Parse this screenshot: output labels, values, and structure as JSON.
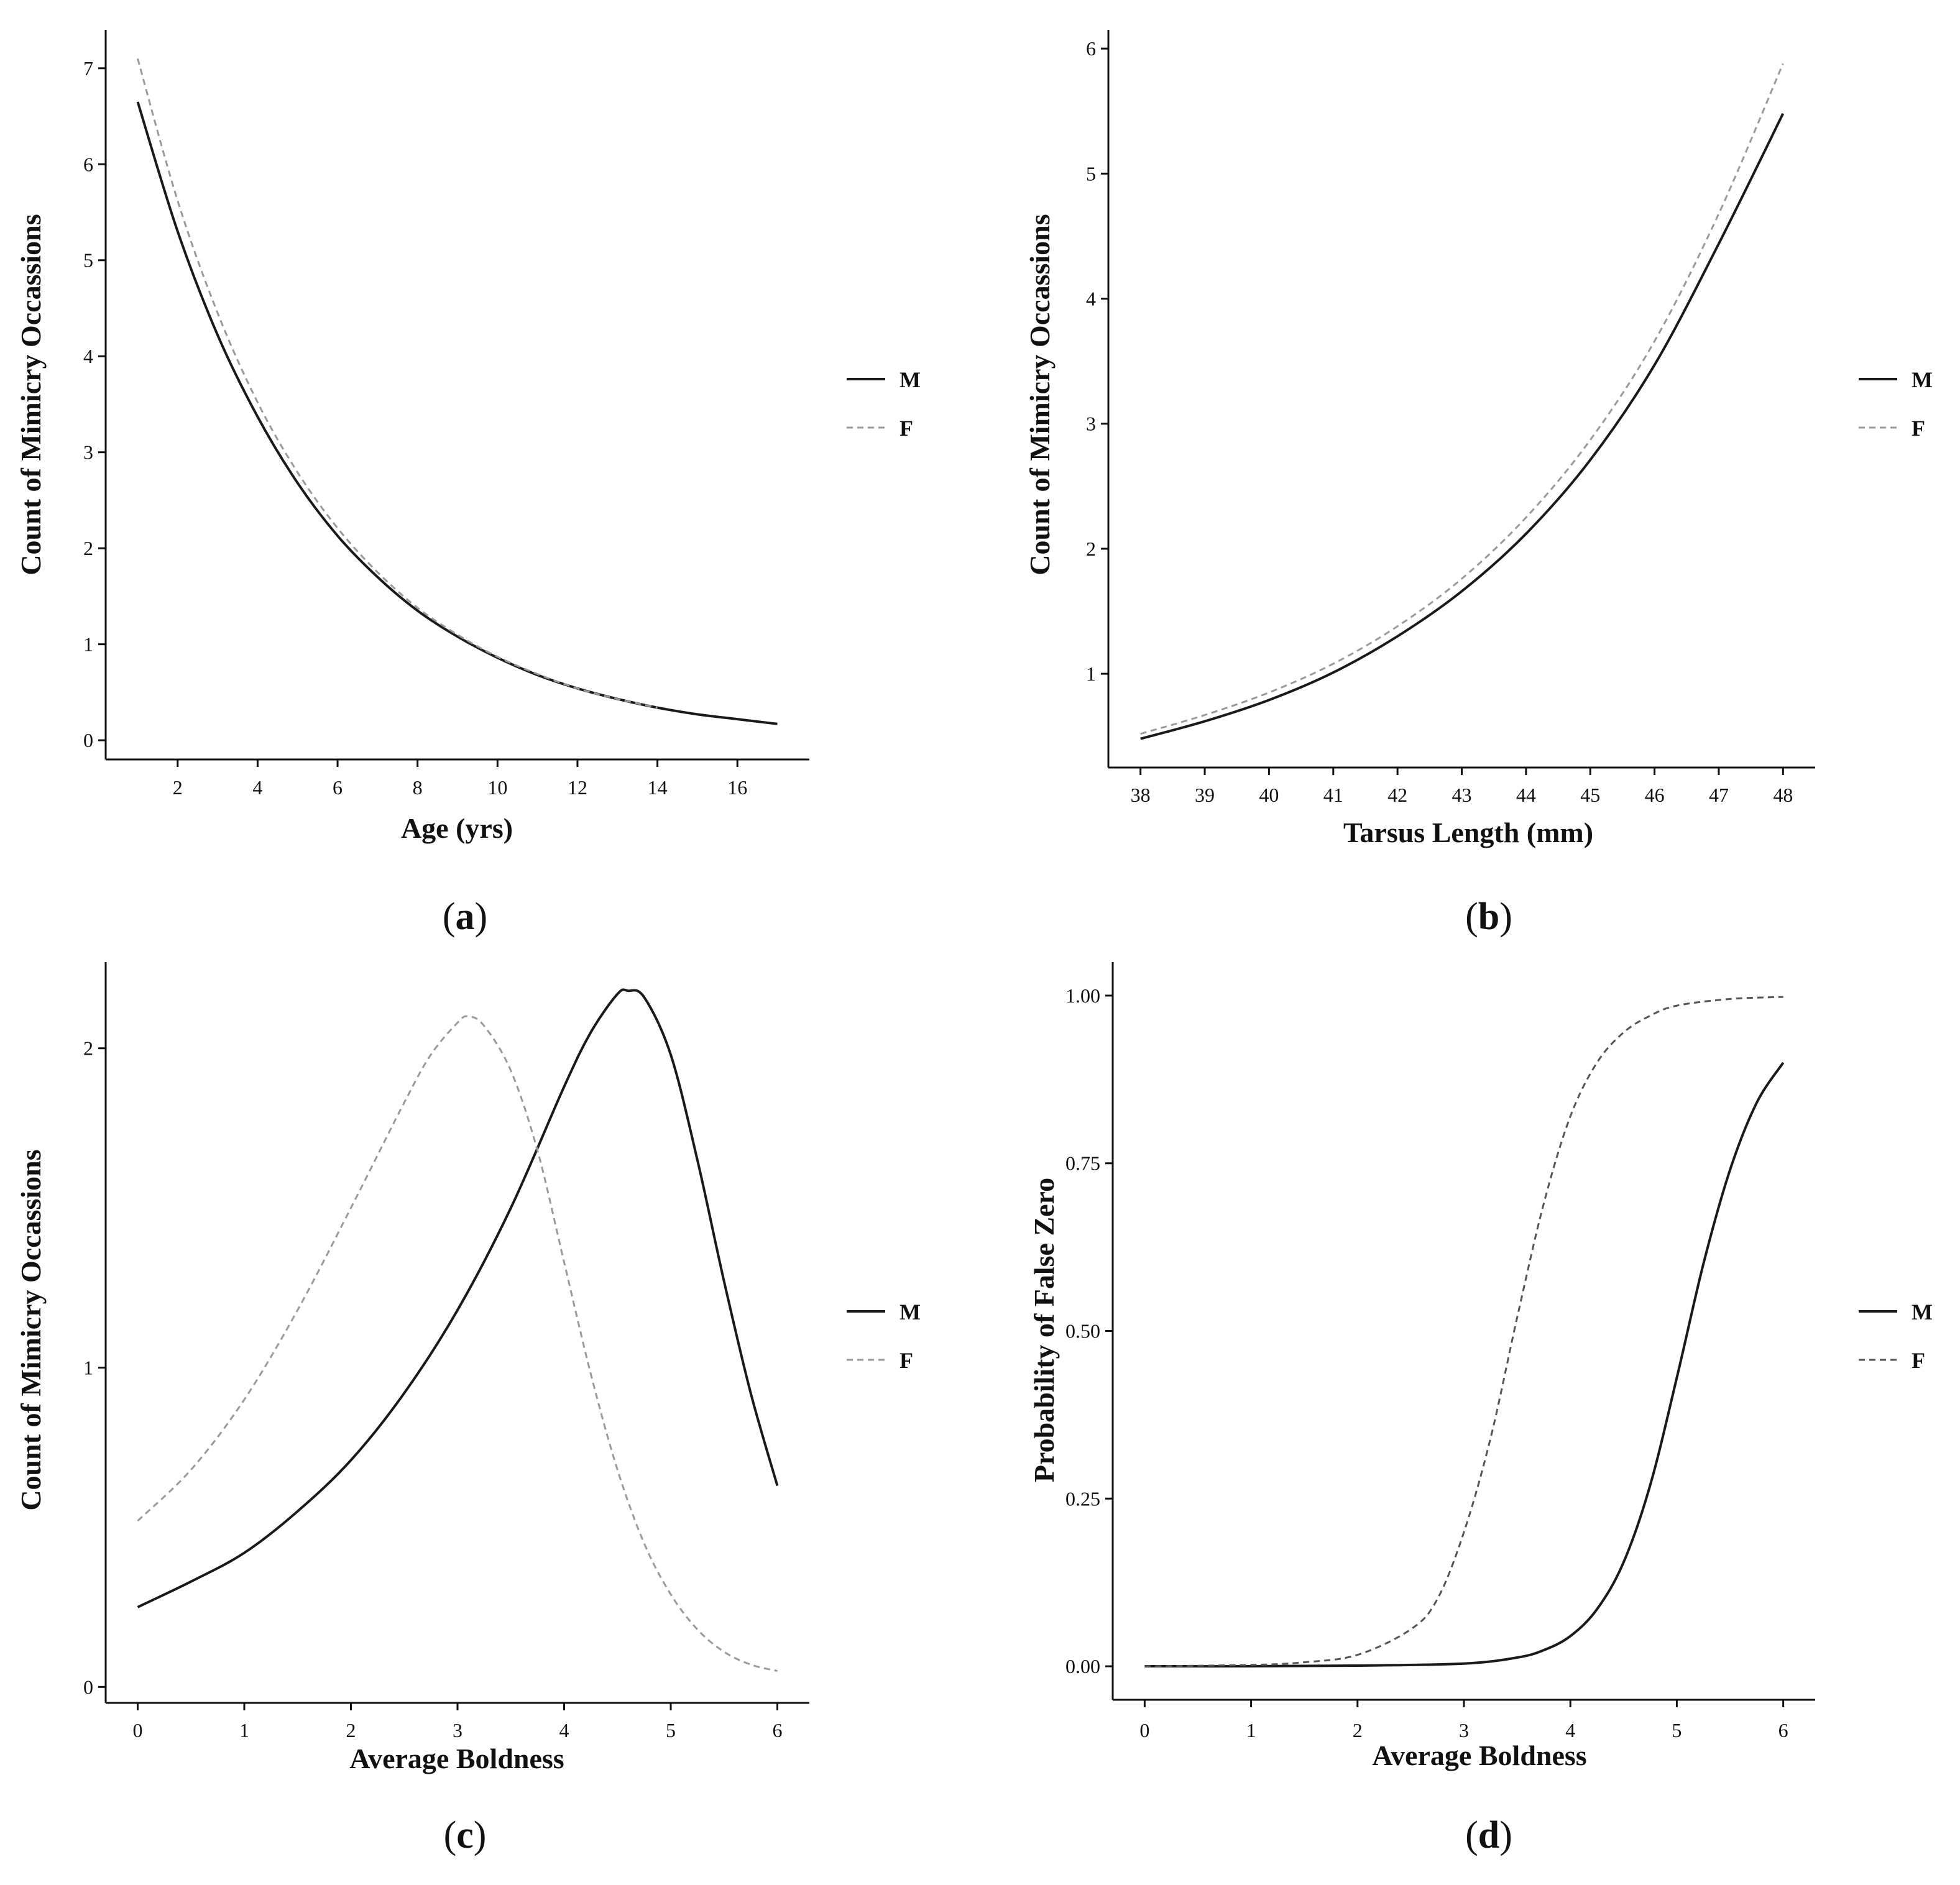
{
  "figure": {
    "panels": [
      "(a)",
      "(b)",
      "(c)",
      "(d)"
    ]
  },
  "colors": {
    "male": "#1a1a1a",
    "female": "#9a9a9a",
    "female_dark": "#555555",
    "axis": "#111111"
  },
  "chart_data": [
    {
      "id": "a",
      "caption_letter": "a",
      "type": "line",
      "title": "",
      "xlabel": "Age (yrs)",
      "ylabel": "Count of Mimicry Occassions",
      "xlim": [
        0.2,
        17.8
      ],
      "ylim": [
        -0.2,
        7.4
      ],
      "xticks": [
        2,
        4,
        6,
        8,
        10,
        12,
        14,
        16
      ],
      "yticks": [
        0,
        1,
        2,
        3,
        4,
        5,
        6,
        7
      ],
      "legend": {
        "position": "right",
        "entries": [
          "M",
          "F"
        ]
      },
      "series": [
        {
          "name": "M",
          "style": "solid",
          "x": [
            1,
            2,
            3,
            4,
            5,
            6,
            7,
            8,
            9,
            10,
            11,
            12,
            13,
            14,
            15,
            16,
            17
          ],
          "y": [
            6.65,
            5.3,
            4.22,
            3.37,
            2.68,
            2.13,
            1.7,
            1.35,
            1.08,
            0.86,
            0.68,
            0.54,
            0.43,
            0.34,
            0.27,
            0.22,
            0.17
          ]
        },
        {
          "name": "F",
          "style": "dashed",
          "x": [
            1,
            2,
            3,
            4,
            5,
            6,
            7,
            8,
            9,
            10,
            11,
            12,
            13,
            14
          ],
          "y": [
            7.1,
            5.62,
            4.45,
            3.52,
            2.79,
            2.21,
            1.75,
            1.38,
            1.1,
            0.87,
            0.69,
            0.54,
            0.43,
            0.34
          ]
        }
      ]
    },
    {
      "id": "b",
      "caption_letter": "b",
      "type": "line",
      "title": "",
      "xlabel": "Tarsus Length (mm)",
      "ylabel": "Count of Mimicry Occassions",
      "xlim": [
        37.5,
        48.5
      ],
      "ylim": [
        0.25,
        6.15
      ],
      "xticks": [
        38,
        39,
        40,
        41,
        42,
        43,
        44,
        45,
        46,
        47,
        48
      ],
      "yticks": [
        1,
        2,
        3,
        4,
        5,
        6
      ],
      "legend": {
        "position": "right",
        "entries": [
          "M",
          "F"
        ]
      },
      "series": [
        {
          "name": "M",
          "style": "solid",
          "x": [
            38,
            39,
            40,
            41,
            42,
            43,
            44,
            45,
            46,
            47,
            48
          ],
          "y": [
            0.48,
            0.62,
            0.79,
            1.01,
            1.3,
            1.66,
            2.12,
            2.71,
            3.47,
            4.44,
            5.48
          ]
        },
        {
          "name": "F",
          "style": "dashed",
          "x": [
            38,
            39,
            40,
            41,
            42,
            43,
            44,
            45,
            46,
            47,
            48
          ],
          "y": [
            0.52,
            0.67,
            0.85,
            1.08,
            1.38,
            1.76,
            2.25,
            2.87,
            3.66,
            4.68,
            5.88
          ]
        }
      ]
    },
    {
      "id": "c",
      "caption_letter": "c",
      "type": "line",
      "title": "",
      "xlabel": "Average Boldness",
      "ylabel": "Count of Mimicry Occassions",
      "xlim": [
        -0.3,
        6.3
      ],
      "ylim": [
        -0.05,
        2.27
      ],
      "xticks": [
        0,
        1,
        2,
        3,
        4,
        5,
        6
      ],
      "yticks": [
        0,
        1,
        2
      ],
      "legend": {
        "position": "right",
        "entries": [
          "M",
          "F"
        ]
      },
      "series": [
        {
          "name": "M",
          "style": "solid",
          "x": [
            0,
            0.5,
            1,
            1.5,
            2,
            2.5,
            3,
            3.5,
            4,
            4.25,
            4.5,
            4.6,
            4.75,
            5,
            5.25,
            5.5,
            5.75,
            6
          ],
          "y": [
            0.25,
            0.33,
            0.42,
            0.55,
            0.71,
            0.92,
            1.18,
            1.5,
            1.88,
            2.05,
            2.17,
            2.18,
            2.16,
            1.98,
            1.65,
            1.27,
            0.92,
            0.63
          ]
        },
        {
          "name": "F",
          "style": "dashed",
          "x": [
            0,
            0.5,
            1,
            1.5,
            2,
            2.5,
            2.75,
            3,
            3.1,
            3.25,
            3.5,
            3.75,
            4,
            4.25,
            4.5,
            4.75,
            5,
            5.25,
            5.5,
            5.75,
            6
          ],
          "y": [
            0.52,
            0.68,
            0.9,
            1.18,
            1.5,
            1.83,
            1.98,
            2.08,
            2.1,
            2.07,
            1.93,
            1.68,
            1.33,
            0.98,
            0.68,
            0.45,
            0.29,
            0.18,
            0.11,
            0.07,
            0.05
          ]
        }
      ]
    },
    {
      "id": "d",
      "caption_letter": "d",
      "type": "line",
      "title": "",
      "xlabel": "Average Boldness",
      "ylabel": "Probability of False Zero",
      "xlim": [
        -0.3,
        6.3
      ],
      "ylim": [
        -0.05,
        1.05
      ],
      "xticks": [
        0,
        1,
        2,
        3,
        4,
        5,
        6
      ],
      "yticks": [
        0.0,
        0.25,
        0.5,
        0.75,
        1.0
      ],
      "ytick_labels": [
        "0.00",
        "0.25",
        "0.50",
        "0.75",
        "1.00"
      ],
      "legend": {
        "position": "right",
        "entries": [
          "M",
          "F"
        ]
      },
      "series": [
        {
          "name": "M",
          "style": "solid",
          "x": [
            0,
            1,
            2,
            3,
            3.5,
            3.75,
            4,
            4.25,
            4.5,
            4.75,
            5,
            5.25,
            5.5,
            5.75,
            6
          ],
          "y": [
            0.0,
            0.0,
            0.001,
            0.004,
            0.013,
            0.024,
            0.045,
            0.085,
            0.155,
            0.27,
            0.43,
            0.6,
            0.74,
            0.84,
            0.9
          ]
        },
        {
          "name": "F",
          "style": "dashed",
          "x": [
            0,
            1,
            1.5,
            2,
            2.5,
            2.75,
            3,
            3.25,
            3.5,
            3.75,
            4,
            4.25,
            4.5,
            4.75,
            5,
            5.5,
            6
          ],
          "y": [
            0.0,
            0.002,
            0.006,
            0.017,
            0.055,
            0.1,
            0.2,
            0.34,
            0.52,
            0.69,
            0.82,
            0.9,
            0.945,
            0.97,
            0.985,
            0.995,
            0.998
          ]
        }
      ]
    }
  ]
}
